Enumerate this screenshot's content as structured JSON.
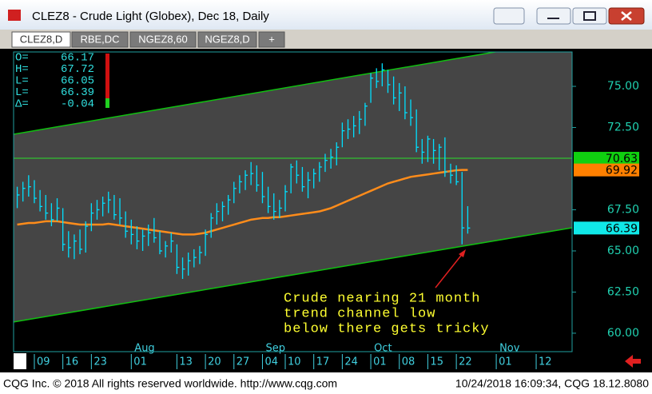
{
  "window": {
    "title": "CLEZ8 - Crude Light (Globex), Dec 18, Daily",
    "tabs": [
      "CLEZ8,D",
      "RBE,DC",
      "NGEZ8,60",
      "NGEZ8,D",
      "+"
    ],
    "footer_left": "CQG Inc. © 2018 All rights reserved worldwide. http://www.cqg.com",
    "footer_right": "10/24/2018 16:09:34, CQG 18.12.8080"
  },
  "chart_data": {
    "type": "ohlc",
    "color": "#00e0ff",
    "x": [
      -3,
      -2,
      -1,
      0,
      1,
      2,
      3,
      4,
      5,
      6,
      7,
      8,
      9,
      10,
      11,
      12,
      13,
      14,
      15,
      16,
      17,
      18,
      19,
      20,
      21,
      22,
      23,
      24,
      25,
      26,
      27,
      28,
      29,
      30,
      31,
      32,
      33,
      34,
      35,
      36,
      37,
      38,
      39,
      40,
      41,
      42,
      43,
      44,
      45,
      46,
      47,
      48,
      49,
      50,
      51,
      52,
      53,
      54,
      55,
      56,
      57,
      58,
      59,
      60,
      61,
      62,
      63,
      64,
      65,
      66,
      67,
      68,
      69,
      70,
      71,
      72,
      73,
      74,
      75,
      76
    ],
    "high": [
      68.9,
      69.2,
      69.6,
      69.3,
      68.7,
      68.4,
      67.9,
      68.2,
      67.6,
      66.2,
      66.0,
      66.3,
      66.8,
      67.9,
      68.1,
      68.3,
      68.6,
      68.4,
      68.2,
      67.4,
      66.9,
      66.5,
      66.3,
      66.6,
      67.0,
      66.2,
      65.6,
      66.1,
      65.4,
      64.6,
      64.9,
      65.1,
      65.3,
      66.3,
      67.3,
      67.9,
      68.0,
      68.4,
      69.2,
      69.6,
      69.9,
      70.4,
      70.2,
      69.8,
      68.9,
      68.5,
      68.1,
      69.0,
      70.3,
      70.5,
      70.1,
      69.8,
      70.0,
      70.4,
      70.9,
      71.2,
      71.6,
      72.8,
      73.0,
      73.2,
      73.5,
      74.0,
      75.8,
      76.1,
      76.4,
      76.0,
      75.6,
      75.2,
      75.0,
      74.2,
      73.6,
      71.8,
      72.0,
      71.8,
      71.5,
      71.9,
      70.3,
      70.2,
      69.8,
      67.72
    ],
    "low": [
      67.6,
      68.0,
      68.3,
      67.9,
      67.4,
      66.9,
      66.5,
      66.8,
      65.0,
      64.6,
      64.5,
      64.8,
      64.9,
      66.2,
      66.9,
      67.1,
      67.3,
      66.9,
      66.6,
      65.8,
      65.4,
      65.1,
      65.0,
      65.3,
      65.5,
      64.8,
      64.6,
      64.9,
      63.6,
      63.3,
      63.5,
      64.0,
      64.2,
      64.7,
      65.8,
      66.6,
      66.8,
      67.2,
      67.9,
      68.5,
      68.7,
      69.0,
      68.6,
      67.9,
      67.3,
      66.9,
      67.0,
      67.4,
      68.5,
      69.1,
      68.6,
      68.2,
      68.8,
      69.2,
      69.8,
      70.0,
      70.2,
      71.3,
      71.8,
      71.9,
      72.1,
      72.6,
      74.0,
      74.9,
      75.0,
      74.6,
      73.9,
      73.5,
      73.0,
      72.6,
      71.0,
      70.3,
      70.4,
      70.3,
      69.9,
      69.5,
      69.1,
      69.0,
      65.4,
      66.05
    ],
    "close": [
      68.4,
      68.8,
      68.9,
      68.2,
      67.7,
      67.3,
      66.9,
      67.6,
      65.4,
      65.2,
      65.6,
      65.1,
      66.5,
      67.3,
      67.5,
      67.9,
      68.1,
      67.2,
      67.0,
      66.2,
      66.0,
      65.6,
      65.9,
      66.1,
      65.8,
      65.0,
      65.3,
      65.6,
      64.0,
      63.9,
      64.4,
      64.6,
      64.9,
      66.0,
      67.0,
      67.4,
      67.7,
      68.1,
      68.8,
      69.2,
      69.6,
      69.7,
      69.0,
      68.3,
      67.7,
      67.4,
      67.6,
      68.6,
      70.1,
      69.6,
      68.9,
      69.3,
      69.7,
      70.1,
      70.5,
      70.7,
      71.3,
      72.3,
      72.4,
      72.6,
      73.0,
      73.8,
      75.5,
      75.3,
      76.0,
      75.1,
      74.3,
      74.6,
      73.4,
      73.1,
      71.3,
      71.0,
      71.8,
      71.1,
      71.3,
      69.8,
      69.6,
      69.2,
      66.4,
      66.39
    ],
    "ma": {
      "color": "#ff8c1a",
      "values": [
        66.6,
        66.65,
        66.7,
        66.7,
        66.75,
        66.8,
        66.8,
        66.8,
        66.75,
        66.7,
        66.65,
        66.6,
        66.6,
        66.6,
        66.6,
        66.6,
        66.65,
        66.6,
        66.55,
        66.5,
        66.45,
        66.4,
        66.35,
        66.3,
        66.25,
        66.2,
        66.15,
        66.1,
        66.05,
        66.0,
        66.0,
        66.0,
        66.05,
        66.1,
        66.2,
        66.3,
        66.4,
        66.5,
        66.6,
        66.7,
        66.8,
        66.9,
        66.95,
        67.0,
        67.0,
        67.05,
        67.05,
        67.1,
        67.15,
        67.2,
        67.25,
        67.3,
        67.35,
        67.4,
        67.5,
        67.6,
        67.75,
        67.9,
        68.05,
        68.2,
        68.35,
        68.5,
        68.65,
        68.8,
        68.95,
        69.1,
        69.2,
        69.3,
        69.4,
        69.5,
        69.55,
        69.6,
        69.65,
        69.7,
        69.75,
        69.8,
        69.85,
        69.9,
        69.92,
        69.92
      ]
    },
    "channel": {
      "color": "#10c010",
      "lines": [
        {
          "x": [
            -3.64,
            80.8
          ],
          "y": [
            72.09,
            77.09
          ]
        },
        {
          "x": [
            -3.64,
            94.3
          ],
          "y": [
            60.68,
            66.41
          ]
        }
      ]
    },
    "hline": {
      "value": 70.63,
      "color": "#30c030"
    },
    "price_tags": [
      {
        "value": 70.63,
        "color": "#10d010"
      },
      {
        "value": 69.92,
        "color": "#ff8000"
      },
      {
        "value": 66.39,
        "color": "#10e8e8"
      }
    ],
    "xlim": [
      -3.64,
      94.3
    ],
    "ylim": [
      58.88,
      77.09
    ],
    "yticks": [
      {
        "value": 75,
        "label": "75.00"
      },
      {
        "value": 72.5,
        "label": "72.50"
      },
      {
        "value": 67.5,
        "label": "67.50"
      },
      {
        "value": 65,
        "label": "65.00"
      },
      {
        "value": 62.5,
        "label": "62.50"
      },
      {
        "value": 60,
        "label": "60.00"
      }
    ],
    "xticks": [
      {
        "value": 0,
        "label": "09"
      },
      {
        "value": 5,
        "label": "16"
      },
      {
        "value": 10,
        "label": "23"
      },
      {
        "value": 17,
        "label": "01"
      },
      {
        "value": 25,
        "label": "13"
      },
      {
        "value": 30,
        "label": "20"
      },
      {
        "value": 35,
        "label": "27"
      },
      {
        "value": 40,
        "label": "04"
      },
      {
        "value": 44,
        "label": "10"
      },
      {
        "value": 49,
        "label": "17"
      },
      {
        "value": 54,
        "label": "24"
      },
      {
        "value": 59,
        "label": "01"
      },
      {
        "value": 64,
        "label": "08"
      },
      {
        "value": 69,
        "label": "15"
      },
      {
        "value": 74,
        "label": "22"
      },
      {
        "value": 81,
        "label": "01"
      },
      {
        "value": 88,
        "label": "12"
      }
    ],
    "month_labels": [
      {
        "value": 17,
        "label": "Aug"
      },
      {
        "value": 40,
        "label": "Sep"
      },
      {
        "value": 59,
        "label": "Oct"
      },
      {
        "value": 81,
        "label": "Nov"
      }
    ],
    "ohlc_box": {
      "labels": [
        "O=",
        "H=",
        "L=",
        "L=",
        "Δ="
      ],
      "values": [
        66.17,
        67.72,
        66.05,
        66.39,
        -0.04
      ]
    },
    "annotation": {
      "color": "#ffff30",
      "lines": [
        "Crude nearing 21 month",
        "trend channel low",
        "below there gets tricky"
      ]
    }
  }
}
